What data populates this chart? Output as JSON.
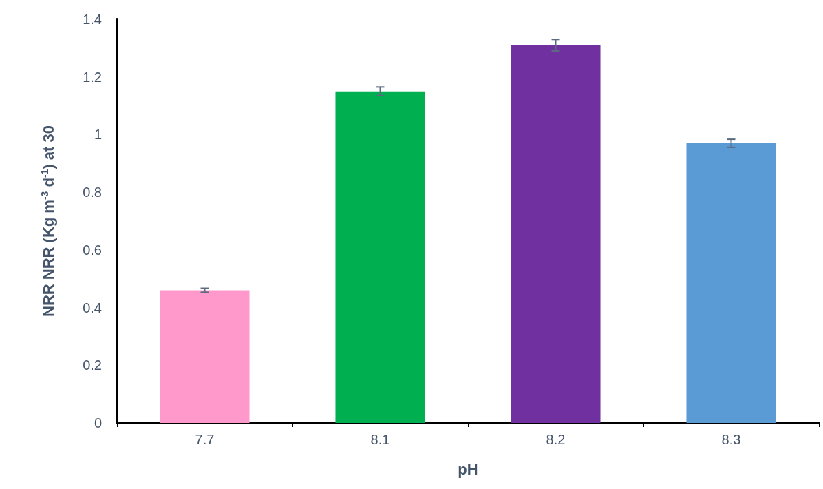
{
  "chart_data": {
    "type": "bar",
    "xlabel": "pH",
    "ylabel": "NRR NRR (Kg m$^{-3}$ d$^{-1}$) at 30",
    "categories": [
      "7.7",
      "8.1",
      "8.2",
      "8.3"
    ],
    "values": [
      0.46,
      1.15,
      1.31,
      0.97
    ],
    "errors": [
      0.007,
      0.015,
      0.02,
      0.014
    ],
    "colors": [
      "#ff99cc",
      "#00b050",
      "#7030a0",
      "#5b9bd5"
    ],
    "ylim": [
      0,
      1.4
    ],
    "yticks": [
      0,
      0.2,
      0.4,
      0.6,
      0.8,
      1,
      1.2,
      1.4
    ],
    "grid": false
  }
}
